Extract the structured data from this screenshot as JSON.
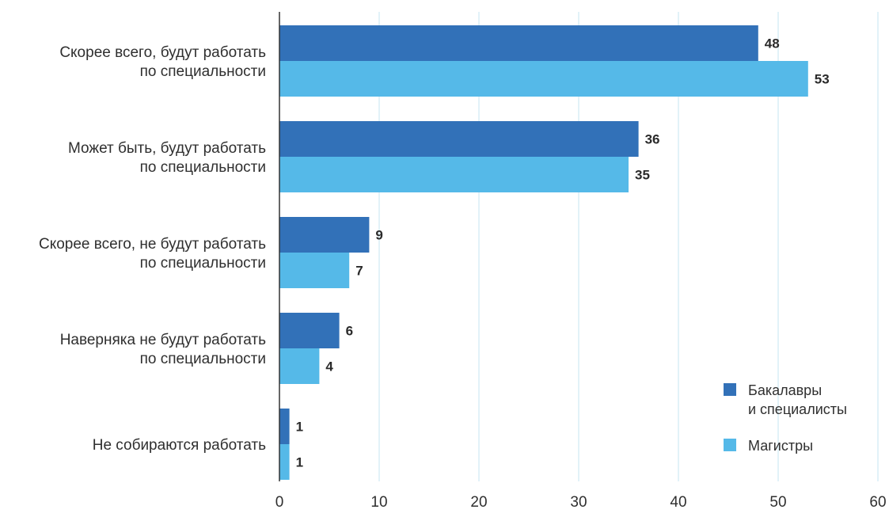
{
  "chart_data": {
    "type": "bar",
    "orientation": "horizontal",
    "categories": [
      [
        "Скорее всего, будут работать",
        "по специальности"
      ],
      [
        "Может быть, будут работать",
        "по специальности"
      ],
      [
        "Скорее всего, не будут работать",
        "по специальности"
      ],
      [
        "Наверняка не будут работать",
        "по специальности"
      ],
      [
        "Не собираются работать"
      ]
    ],
    "series": [
      {
        "name": [
          "Бакалавры",
          "и специалисты"
        ],
        "color": "#3271b8",
        "values": [
          48,
          36,
          9,
          6,
          1
        ]
      },
      {
        "name": [
          "Магистры"
        ],
        "color": "#55b9e8",
        "values": [
          53,
          35,
          7,
          4,
          1
        ]
      }
    ],
    "xlim": [
      0,
      60
    ],
    "xticks": [
      0,
      10,
      20,
      30,
      40,
      50,
      60
    ],
    "grid": "vertical",
    "grid_color": "#cfe8f3",
    "axis_color": "#333333",
    "legend_position": "bottom-right",
    "show_data_labels": true
  }
}
